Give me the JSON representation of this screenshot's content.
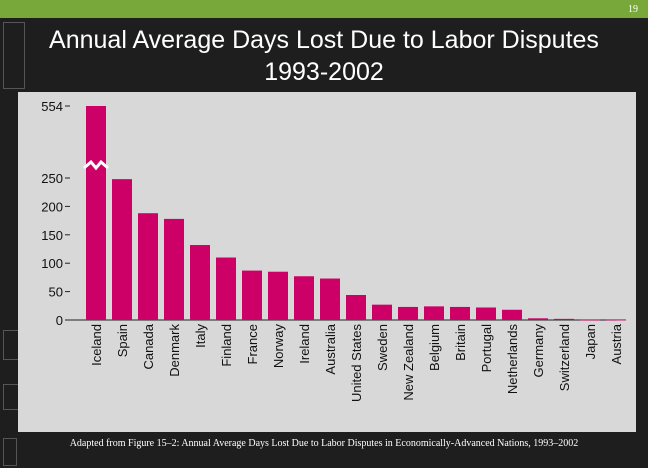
{
  "page_number": "19",
  "title_line1": "Annual Average Days Lost Due to Labor Disputes",
  "title_line2": "1993-2002",
  "caption": "Adapted from Figure 15–2: Annual Average Days Lost Due to Labor Disputes in Economically-Advanced Nations, 1993–2002",
  "colors": {
    "bar": "#cc0066",
    "panel": "#d8d8d8",
    "accent": "#79a83a"
  },
  "chart_data": {
    "type": "bar",
    "title": "Annual Average Days Lost Due to Labor Disputes 1993-2002",
    "xlabel": "",
    "ylabel": "",
    "categories": [
      "Iceland",
      "Spain",
      "Canada",
      "Denmark",
      "Italy",
      "Finland",
      "France",
      "Norway",
      "Ireland",
      "Australia",
      "United States",
      "Sweden",
      "New Zealand",
      "Belgium",
      "Britain",
      "Portugal",
      "Netherlands",
      "Germany",
      "Switzerland",
      "Japan",
      "Austria"
    ],
    "values": [
      554,
      248,
      188,
      178,
      132,
      110,
      87,
      85,
      77,
      73,
      44,
      27,
      23,
      24,
      23,
      22,
      18,
      3,
      2,
      1,
      1
    ],
    "yticks": [
      "0",
      "50",
      "100",
      "150",
      "200",
      "250",
      "554"
    ],
    "ylim": [
      0,
      250
    ],
    "axis_break": true,
    "grid": false
  }
}
